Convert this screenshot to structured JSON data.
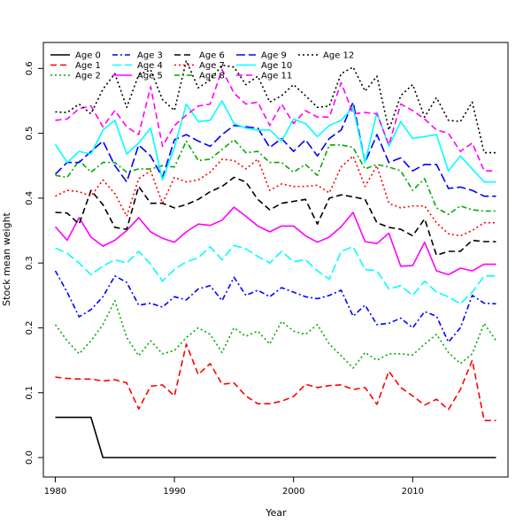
{
  "chart_data": {
    "type": "line",
    "title": "",
    "xlabel": "Year",
    "ylabel": "Stock mean weight",
    "xlim": [
      1979,
      2018
    ],
    "ylim": [
      -0.03,
      0.64
    ],
    "x_ticks": [
      1980,
      1990,
      2000,
      2010
    ],
    "y_ticks": [
      0.0,
      0.1,
      0.2,
      0.3,
      0.4,
      0.5,
      0.6
    ],
    "y_tick_labels": [
      "0.0",
      "0.1",
      "0.2",
      "0.3",
      "0.4",
      "0.5",
      "0.6"
    ],
    "grid": false,
    "legend_position": "top-left",
    "x": [
      1980,
      1981,
      1982,
      1983,
      1984,
      1985,
      1986,
      1987,
      1988,
      1989,
      1990,
      1991,
      1992,
      1993,
      1994,
      1995,
      1996,
      1997,
      1998,
      1999,
      2000,
      2001,
      2002,
      2003,
      2004,
      2005,
      2006,
      2007,
      2008,
      2009,
      2010,
      2011,
      2012,
      2013,
      2014,
      2015,
      2016,
      2017
    ],
    "series": [
      {
        "name": "Age 0",
        "color": "#000000",
        "dash": "solid",
        "values": [
          0.062,
          0.062,
          0.062,
          0.062,
          0,
          0,
          0,
          0,
          0,
          0,
          0,
          0,
          0,
          0,
          0,
          0,
          0,
          0,
          0,
          0,
          0,
          0,
          0,
          0,
          0,
          0,
          0,
          0,
          0,
          0,
          0,
          0,
          0,
          0,
          0,
          0,
          0,
          0
        ]
      },
      {
        "name": "Age 1",
        "color": "#ff0000",
        "dash": "dash",
        "values": [
          0.124,
          0.122,
          0.121,
          0.121,
          0.118,
          0.12,
          0.115,
          0.075,
          0.11,
          0.112,
          0.095,
          0.175,
          0.128,
          0.145,
          0.113,
          0.115,
          0.095,
          0.083,
          0.083,
          0.087,
          0.094,
          0.113,
          0.108,
          0.111,
          0.112,
          0.105,
          0.108,
          0.082,
          0.133,
          0.108,
          0.095,
          0.081,
          0.09,
          0.074,
          0.105,
          0.15,
          0.057,
          0.057
        ]
      },
      {
        "name": "Age 2",
        "color": "#00aa00",
        "dash": "dot",
        "values": [
          0.205,
          0.18,
          0.16,
          0.18,
          0.205,
          0.242,
          0.185,
          0.157,
          0.18,
          0.16,
          0.165,
          0.185,
          0.2,
          0.19,
          0.162,
          0.2,
          0.187,
          0.195,
          0.175,
          0.21,
          0.195,
          0.19,
          0.205,
          0.175,
          0.157,
          0.138,
          0.162,
          0.15,
          0.16,
          0.16,
          0.158,
          0.175,
          0.19,
          0.162,
          0.145,
          0.16,
          0.207,
          0.18
        ]
      },
      {
        "name": "Age 3",
        "color": "#0000ff",
        "dash": "dashdot",
        "values": [
          0.288,
          0.255,
          0.217,
          0.228,
          0.248,
          0.28,
          0.27,
          0.235,
          0.238,
          0.232,
          0.248,
          0.243,
          0.26,
          0.265,
          0.242,
          0.278,
          0.25,
          0.258,
          0.248,
          0.262,
          0.255,
          0.248,
          0.245,
          0.25,
          0.258,
          0.218,
          0.235,
          0.205,
          0.207,
          0.215,
          0.2,
          0.225,
          0.218,
          0.178,
          0.2,
          0.25,
          0.238,
          0.237
        ]
      },
      {
        "name": "Age 4",
        "color": "#00ffff",
        "dash": "longdash",
        "values": [
          0.323,
          0.315,
          0.3,
          0.282,
          0.295,
          0.305,
          0.3,
          0.318,
          0.298,
          0.272,
          0.29,
          0.302,
          0.308,
          0.325,
          0.305,
          0.327,
          0.322,
          0.31,
          0.3,
          0.318,
          0.302,
          0.305,
          0.288,
          0.275,
          0.318,
          0.325,
          0.29,
          0.288,
          0.26,
          0.265,
          0.25,
          0.272,
          0.255,
          0.248,
          0.237,
          0.255,
          0.28,
          0.28
        ]
      },
      {
        "name": "Age 5",
        "color": "#ff00ff",
        "dash": "solid",
        "values": [
          0.356,
          0.335,
          0.37,
          0.34,
          0.326,
          0.335,
          0.35,
          0.37,
          0.348,
          0.338,
          0.332,
          0.348,
          0.36,
          0.358,
          0.366,
          0.386,
          0.372,
          0.357,
          0.348,
          0.357,
          0.357,
          0.342,
          0.332,
          0.34,
          0.356,
          0.378,
          0.333,
          0.33,
          0.346,
          0.295,
          0.296,
          0.332,
          0.288,
          0.282,
          0.292,
          0.288,
          0.298,
          0.298
        ]
      },
      {
        "name": "Age 6",
        "color": "#000000",
        "dash": "dash",
        "values": [
          0.378,
          0.377,
          0.36,
          0.412,
          0.39,
          0.355,
          0.352,
          0.418,
          0.392,
          0.392,
          0.385,
          0.39,
          0.398,
          0.41,
          0.418,
          0.432,
          0.425,
          0.398,
          0.382,
          0.392,
          0.395,
          0.398,
          0.36,
          0.4,
          0.405,
          0.402,
          0.398,
          0.362,
          0.355,
          0.352,
          0.342,
          0.368,
          0.312,
          0.318,
          0.318,
          0.335,
          0.333,
          0.333
        ]
      },
      {
        "name": "Age 7",
        "color": "#ff0000",
        "dash": "dot",
        "values": [
          0.403,
          0.412,
          0.41,
          0.403,
          0.428,
          0.407,
          0.372,
          0.43,
          0.442,
          0.392,
          0.432,
          0.425,
          0.428,
          0.44,
          0.46,
          0.458,
          0.445,
          0.46,
          0.412,
          0.422,
          0.418,
          0.418,
          0.42,
          0.408,
          0.448,
          0.465,
          0.418,
          0.45,
          0.392,
          0.385,
          0.388,
          0.388,
          0.362,
          0.345,
          0.342,
          0.35,
          0.362,
          0.362
        ]
      },
      {
        "name": "Age 8",
        "color": "#00aa00",
        "dash": "dashdot",
        "values": [
          0.435,
          0.432,
          0.458,
          0.44,
          0.455,
          0.455,
          0.44,
          0.445,
          0.445,
          0.45,
          0.448,
          0.488,
          0.458,
          0.46,
          0.475,
          0.49,
          0.47,
          0.472,
          0.455,
          0.455,
          0.44,
          0.452,
          0.435,
          0.482,
          0.482,
          0.478,
          0.445,
          0.452,
          0.448,
          0.442,
          0.412,
          0.43,
          0.385,
          0.375,
          0.388,
          0.382,
          0.38,
          0.38
        ]
      },
      {
        "name": "Age 9",
        "color": "#0000ff",
        "dash": "longdash",
        "values": [
          0.437,
          0.455,
          0.455,
          0.472,
          0.488,
          0.45,
          0.425,
          0.482,
          0.465,
          0.432,
          0.49,
          0.498,
          0.488,
          0.48,
          0.498,
          0.512,
          0.51,
          0.508,
          0.478,
          0.492,
          0.472,
          0.49,
          0.465,
          0.492,
          0.505,
          0.548,
          0.455,
          0.498,
          0.455,
          0.462,
          0.442,
          0.452,
          0.452,
          0.415,
          0.417,
          0.412,
          0.403,
          0.403
        ]
      },
      {
        "name": "Age 10",
        "color": "#00ffff",
        "dash": "solid",
        "values": [
          0.483,
          0.455,
          0.472,
          0.468,
          0.505,
          0.52,
          0.468,
          0.485,
          0.508,
          0.428,
          0.478,
          0.545,
          0.518,
          0.52,
          0.55,
          0.515,
          0.508,
          0.505,
          0.505,
          0.488,
          0.522,
          0.515,
          0.495,
          0.512,
          0.52,
          0.54,
          0.455,
          0.532,
          0.48,
          0.518,
          0.492,
          0.495,
          0.498,
          0.442,
          0.465,
          0.445,
          0.425,
          0.425
        ]
      },
      {
        "name": "Age 11",
        "color": "#ff00ff",
        "dash": "dash",
        "values": [
          0.52,
          0.522,
          0.538,
          0.542,
          0.51,
          0.535,
          0.51,
          0.498,
          0.572,
          0.48,
          0.512,
          0.528,
          0.542,
          0.545,
          0.598,
          0.562,
          0.545,
          0.548,
          0.512,
          0.545,
          0.515,
          0.535,
          0.525,
          0.525,
          0.578,
          0.53,
          0.532,
          0.53,
          0.482,
          0.545,
          0.535,
          0.522,
          0.505,
          0.5,
          0.472,
          0.485,
          0.442,
          0.442
        ]
      },
      {
        "name": "Age 12",
        "color": "#000000",
        "dash": "dot",
        "values": [
          0.533,
          0.532,
          0.545,
          0.53,
          0.568,
          0.592,
          0.54,
          0.59,
          0.598,
          0.552,
          0.535,
          0.612,
          0.57,
          0.582,
          0.605,
          0.602,
          0.575,
          0.588,
          0.548,
          0.558,
          0.575,
          0.558,
          0.54,
          0.542,
          0.592,
          0.602,
          0.565,
          0.588,
          0.505,
          0.558,
          0.575,
          0.525,
          0.555,
          0.52,
          0.518,
          0.548,
          0.47,
          0.47
        ]
      }
    ]
  }
}
